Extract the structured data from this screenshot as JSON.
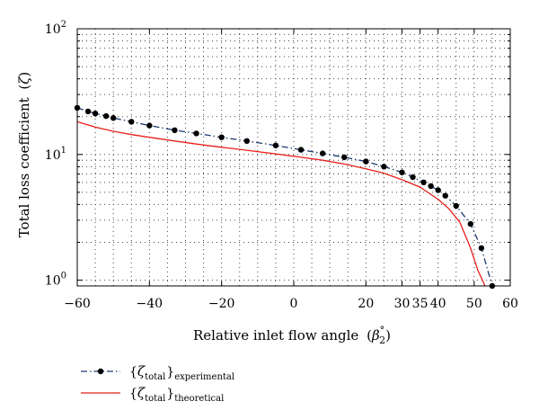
{
  "chart_data": {
    "type": "line",
    "title": "",
    "xlabel": "Relative inlet flow angle",
    "xlabel_symbol": "β",
    "xlabel_sub": "2",
    "xlabel_sup": "°",
    "ylabel": "Total loss coefficient",
    "ylabel_symbol": "ζ",
    "xlim": [
      -60,
      60
    ],
    "ylim": [
      0.9,
      100
    ],
    "yscale": "log",
    "grid": true,
    "legend_position": "bottom-left",
    "x_tick_labels": [
      {
        "value": -60,
        "label": "−60"
      },
      {
        "value": -40,
        "label": "−40"
      },
      {
        "value": -20,
        "label": "−20"
      },
      {
        "value": 0,
        "label": "0"
      },
      {
        "value": 20,
        "label": "20"
      },
      {
        "value": 30,
        "label": "30"
      },
      {
        "value": 35,
        "label": "35"
      },
      {
        "value": 40,
        "label": "40"
      },
      {
        "value": 50,
        "label": "50"
      },
      {
        "value": 60,
        "label": "60"
      }
    ],
    "y_tick_labels": [
      {
        "value": 1,
        "base": "10",
        "exp": "0"
      },
      {
        "value": 10,
        "base": "10",
        "exp": "1"
      },
      {
        "value": 100,
        "base": "10",
        "exp": "2"
      }
    ],
    "series": [
      {
        "name": "experimental",
        "legend_symbol": "ζ",
        "legend_sub_main": "total",
        "legend_sub_tail": "experimental",
        "color": "#1a3a6e",
        "line_style": "dash-dot",
        "marker": "circle",
        "x": [
          -60,
          -57,
          -55,
          -52,
          -50,
          -45,
          -40,
          -33,
          -27,
          -20,
          -13,
          -5,
          2,
          8,
          14,
          20,
          25,
          30,
          33,
          36,
          38,
          40,
          42,
          45,
          49,
          52,
          55
        ],
        "y": [
          23.5,
          22.0,
          21.2,
          20.2,
          19.5,
          18.2,
          17.0,
          15.6,
          14.7,
          13.7,
          12.8,
          11.8,
          10.9,
          10.2,
          9.5,
          8.8,
          8.0,
          7.2,
          6.6,
          6.0,
          5.6,
          5.2,
          4.7,
          3.9,
          2.8,
          1.8,
          0.9
        ]
      },
      {
        "name": "theoretical",
        "legend_symbol": "ζ",
        "legend_sub_main": "total",
        "legend_sub_tail": "theoretical",
        "color": "#e8201a",
        "line_style": "solid",
        "marker": "none",
        "x": [
          -60,
          -55,
          -50,
          -45,
          -40,
          -33,
          -27,
          -20,
          -13,
          -5,
          2,
          8,
          14,
          20,
          25,
          30,
          35,
          40,
          43,
          46,
          49,
          51,
          53
        ],
        "y": [
          18.2,
          16.5,
          15.3,
          14.4,
          13.7,
          12.8,
          12.1,
          11.4,
          10.8,
          10.1,
          9.5,
          9.0,
          8.4,
          7.7,
          7.1,
          6.3,
          5.5,
          4.4,
          3.7,
          2.9,
          1.8,
          1.2,
          0.9
        ]
      }
    ]
  }
}
